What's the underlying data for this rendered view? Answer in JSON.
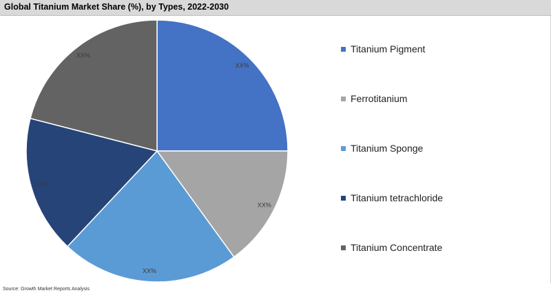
{
  "title": "Global Titanium Market Share (%), by Types, 2022-2030",
  "source": "Source: Growth Market Reports Analysis",
  "chart_data": {
    "type": "pie",
    "title": "Global Titanium Market Share (%), by Types, 2022-2030",
    "legend_position": "right",
    "slices": [
      {
        "label": "Titanium Pigment",
        "value": 25,
        "data_label": "XX%",
        "color": "#4472c4"
      },
      {
        "label": "Ferrotitanium",
        "value": 15,
        "data_label": "XX%",
        "color": "#a5a5a5"
      },
      {
        "label": "Titanium Sponge",
        "value": 22,
        "data_label": "XX%",
        "color": "#5b9bd5"
      },
      {
        "label": "Titanium tetrachloride",
        "value": 17,
        "data_label": "XX%",
        "color": "#264478"
      },
      {
        "label": "Titanium Concentrate",
        "value": 21,
        "data_label": "XX%",
        "color": "#636363"
      }
    ]
  }
}
